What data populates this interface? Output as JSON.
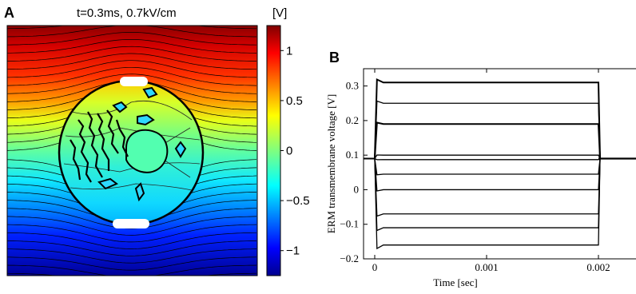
{
  "panel_a": {
    "letter": "A",
    "title": "t=0.3ms, 0.7kV/cm",
    "colorbar_unit": "[V]",
    "colorbar_ticks": [
      "1",
      "0.5",
      "0",
      "−0.5",
      "−1"
    ]
  },
  "panel_b": {
    "letter": "B"
  },
  "chart_data": [
    {
      "type": "heatmap",
      "title": "t=0.3ms, 0.7kV/cm",
      "description_field": "electric potential map with equipotential contour lines around a circular tissue section",
      "colorbar": {
        "unit": "[V]",
        "range": [
          -1.25,
          1.25
        ],
        "ticks": [
          1,
          0.5,
          0,
          -0.5,
          -1
        ],
        "tick_labels": [
          "1",
          "0.5",
          "0",
          "−0.5",
          "−1"
        ],
        "colormap": "jet",
        "colors": [
          "#00008f",
          "#0000ff",
          "#00ffff",
          "#ffff00",
          "#ff0000",
          "#800000"
        ]
      }
    },
    {
      "type": "line",
      "xlabel": "Time [sec]",
      "ylabel": "ERM transmembrane voltage [V]",
      "xlim": [
        -0.0001,
        0.0024
      ],
      "ylim": [
        -0.2,
        0.35
      ],
      "xticks": [
        0,
        0.001,
        0.002
      ],
      "xtick_labels": [
        "0",
        "0.001",
        "0.002"
      ],
      "yticks": [
        -0.2,
        -0.1,
        0,
        0.1,
        0.2,
        0.3
      ],
      "ytick_labels": [
        "−0.2",
        "−0.1",
        "0",
        "0.1",
        "0.2",
        "0.3"
      ],
      "pulse_on": 2e-05,
      "pulse_off": 0.002,
      "x_end": 0.0024,
      "baseline": 0.09,
      "plateau_levels": [
        0.31,
        0.25,
        0.19,
        0.1,
        0.087,
        0.045,
        0.0,
        -0.07,
        -0.11,
        -0.16
      ],
      "line_color": "#000000"
    }
  ]
}
